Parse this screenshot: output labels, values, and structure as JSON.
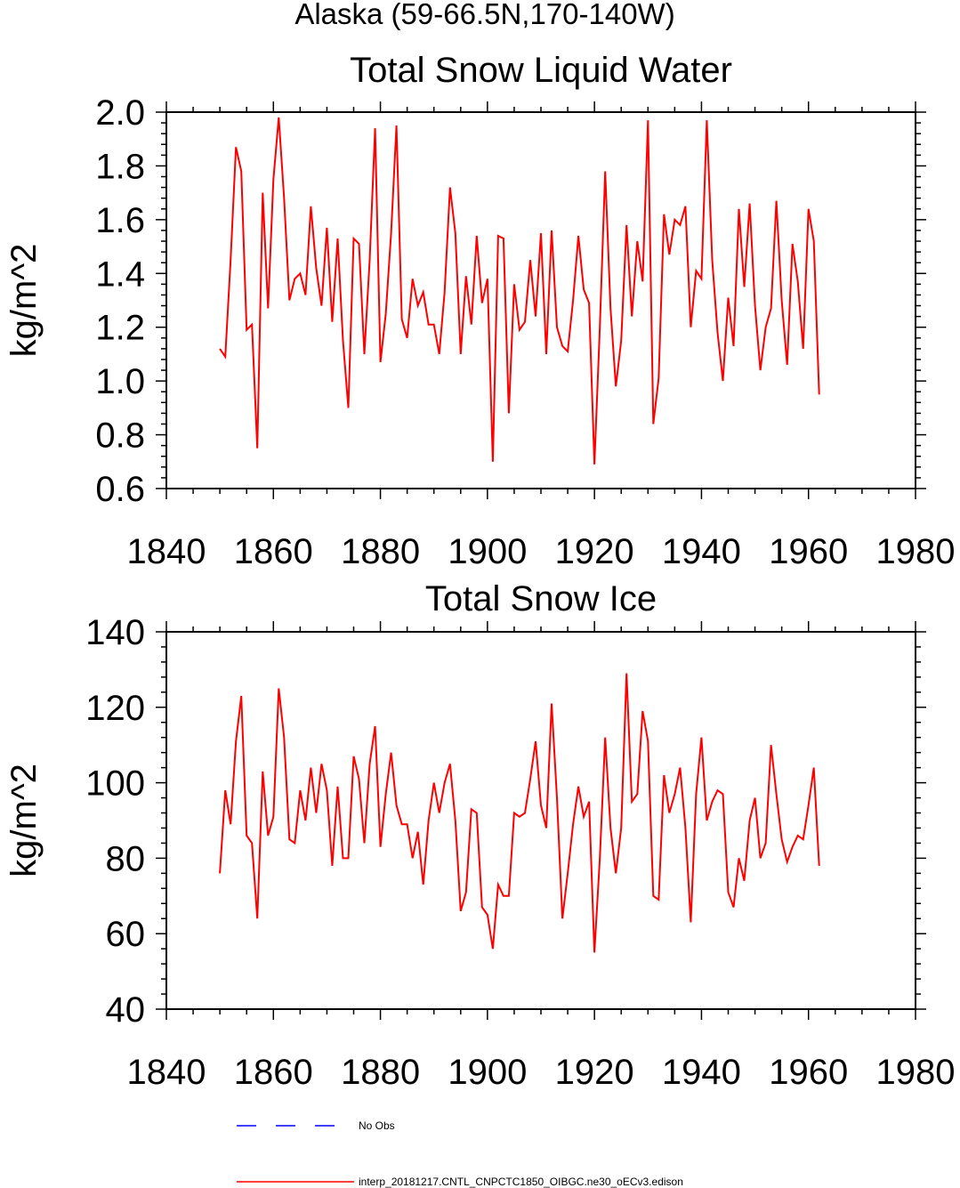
{
  "header": {
    "title": "Alaska (59-66.5N,170-140W)"
  },
  "chart_data": [
    {
      "type": "line",
      "title": "Total Snow Liquid Water",
      "ylabel": "kg/m^2",
      "xlim": [
        1840,
        1980
      ],
      "ylim": [
        0.6,
        2.0
      ],
      "xticks": [
        1840,
        1860,
        1880,
        1900,
        1920,
        1940,
        1960,
        1980
      ],
      "yticks": [
        0.6,
        0.8,
        1.0,
        1.2,
        1.4,
        1.6,
        1.8,
        2.0
      ],
      "ytick_labels": [
        "0.6",
        "0.8",
        "1.0",
        "1.2",
        "1.4",
        "1.6",
        "1.8",
        "2.0"
      ],
      "series": [
        {
          "color": "#ff0000",
          "x": [
            1850,
            1851,
            1852,
            1853,
            1854,
            1855,
            1856,
            1857,
            1858,
            1859,
            1860,
            1861,
            1862,
            1863,
            1864,
            1865,
            1866,
            1867,
            1868,
            1869,
            1870,
            1871,
            1872,
            1873,
            1874,
            1875,
            1876,
            1877,
            1878,
            1879,
            1880,
            1881,
            1882,
            1883,
            1884,
            1885,
            1886,
            1887,
            1888,
            1889,
            1890,
            1891,
            1892,
            1893,
            1894,
            1895,
            1896,
            1897,
            1898,
            1899,
            1900,
            1901,
            1902,
            1903,
            1904,
            1905,
            1906,
            1907,
            1908,
            1909,
            1910,
            1911,
            1912,
            1913,
            1914,
            1915,
            1916,
            1917,
            1918,
            1919,
            1920,
            1921,
            1922,
            1923,
            1924,
            1925,
            1926,
            1927,
            1928,
            1929,
            1930,
            1931,
            1932,
            1933,
            1934,
            1935,
            1936,
            1937,
            1938,
            1939,
            1940,
            1941,
            1942,
            1943,
            1944,
            1945,
            1946,
            1947,
            1948,
            1949,
            1950,
            1951,
            1952,
            1953,
            1954,
            1955,
            1956,
            1957,
            1958,
            1959,
            1960,
            1961,
            1962
          ],
          "y": [
            1.12,
            1.09,
            1.45,
            1.87,
            1.78,
            1.19,
            1.21,
            0.75,
            1.7,
            1.27,
            1.75,
            1.98,
            1.68,
            1.3,
            1.38,
            1.4,
            1.32,
            1.65,
            1.42,
            1.28,
            1.57,
            1.22,
            1.53,
            1.15,
            0.9,
            1.53,
            1.51,
            1.1,
            1.45,
            1.94,
            1.07,
            1.25,
            1.55,
            1.95,
            1.23,
            1.16,
            1.38,
            1.28,
            1.33,
            1.21,
            1.21,
            1.1,
            1.33,
            1.72,
            1.55,
            1.1,
            1.39,
            1.21,
            1.54,
            1.29,
            1.38,
            0.7,
            1.54,
            1.53,
            0.88,
            1.36,
            1.19,
            1.22,
            1.45,
            1.24,
            1.55,
            1.1,
            1.56,
            1.2,
            1.13,
            1.11,
            1.3,
            1.54,
            1.34,
            1.29,
            0.69,
            1.2,
            1.78,
            1.27,
            0.98,
            1.15,
            1.58,
            1.24,
            1.52,
            1.37,
            1.97,
            0.84,
            1.01,
            1.62,
            1.47,
            1.6,
            1.58,
            1.65,
            1.2,
            1.41,
            1.38,
            1.97,
            1.45,
            1.18,
            1.0,
            1.31,
            1.13,
            1.64,
            1.35,
            1.66,
            1.28,
            1.04,
            1.2,
            1.27,
            1.67,
            1.3,
            1.06,
            1.51,
            1.37,
            1.12,
            1.64,
            1.52,
            0.95
          ]
        }
      ]
    },
    {
      "type": "line",
      "title": "Total Snow Ice",
      "ylabel": "kg/m^2",
      "xlim": [
        1840,
        1980
      ],
      "ylim": [
        40,
        140
      ],
      "xticks": [
        1840,
        1860,
        1880,
        1900,
        1920,
        1940,
        1960,
        1980
      ],
      "yticks": [
        40,
        60,
        80,
        100,
        120,
        140
      ],
      "ytick_labels": [
        "40",
        "60",
        "80",
        "100",
        "120",
        "140"
      ],
      "series": [
        {
          "color": "#ff0000",
          "x": [
            1850,
            1851,
            1852,
            1853,
            1854,
            1855,
            1856,
            1857,
            1858,
            1859,
            1860,
            1861,
            1862,
            1863,
            1864,
            1865,
            1866,
            1867,
            1868,
            1869,
            1870,
            1871,
            1872,
            1873,
            1874,
            1875,
            1876,
            1877,
            1878,
            1879,
            1880,
            1881,
            1882,
            1883,
            1884,
            1885,
            1886,
            1887,
            1888,
            1889,
            1890,
            1891,
            1892,
            1893,
            1894,
            1895,
            1896,
            1897,
            1898,
            1899,
            1900,
            1901,
            1902,
            1903,
            1904,
            1905,
            1906,
            1907,
            1908,
            1909,
            1910,
            1911,
            1912,
            1913,
            1914,
            1915,
            1916,
            1917,
            1918,
            1919,
            1920,
            1921,
            1922,
            1923,
            1924,
            1925,
            1926,
            1927,
            1928,
            1929,
            1930,
            1931,
            1932,
            1933,
            1934,
            1935,
            1936,
            1937,
            1938,
            1939,
            1940,
            1941,
            1942,
            1943,
            1944,
            1945,
            1946,
            1947,
            1948,
            1949,
            1950,
            1951,
            1952,
            1953,
            1954,
            1955,
            1956,
            1957,
            1958,
            1959,
            1960,
            1961,
            1962
          ],
          "y": [
            76,
            98,
            89,
            111,
            123,
            86,
            84,
            64,
            103,
            86,
            91,
            125,
            112,
            85,
            84,
            98,
            90,
            104,
            92,
            105,
            98,
            78,
            99,
            80,
            80,
            107,
            101,
            84,
            105,
            115,
            83,
            97,
            108,
            94,
            89,
            89,
            80,
            87,
            73,
            90,
            100,
            92,
            100,
            105,
            90,
            66,
            71,
            93,
            92,
            67,
            65,
            56,
            73,
            70,
            70,
            92,
            91,
            92,
            101,
            111,
            94,
            88,
            121,
            96,
            64,
            76,
            89,
            99,
            91,
            95,
            55,
            80,
            112,
            88,
            76,
            88,
            129,
            95,
            97,
            119,
            111,
            70,
            69,
            102,
            92,
            97,
            104,
            88,
            63,
            97,
            112,
            90,
            95,
            98,
            97,
            71,
            67,
            80,
            74,
            90,
            96,
            80,
            84,
            110,
            97,
            85,
            79,
            83,
            86,
            85,
            94,
            104,
            78
          ]
        }
      ]
    }
  ],
  "legend": {
    "placement": "bottom",
    "items": [
      {
        "label": "No Obs",
        "color": "#0000ff",
        "style": "dashed"
      },
      {
        "label": "interp_20181217.CNTL_CNPCTC1850_OIBGC.ne30_oECv3.edison",
        "color": "#ff0000",
        "style": "solid"
      }
    ]
  }
}
